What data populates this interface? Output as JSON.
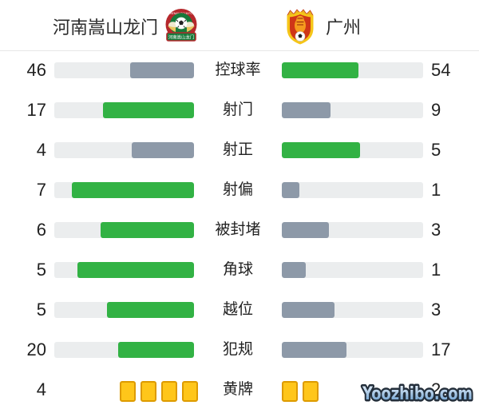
{
  "header": {
    "home_team": "河南嵩山龙门",
    "away_team": "广州",
    "home_logo_banner": "河南嵩山龙门",
    "home_logo_top_text": "HENAN SGLM FC"
  },
  "stats": [
    {
      "label": "控球率",
      "home": "46",
      "away": "54",
      "home_pct": 46,
      "away_pct": 54,
      "home_color": "gray",
      "away_color": "green"
    },
    {
      "label": "射门",
      "home": "17",
      "away": "9",
      "home_pct": 65.4,
      "away_pct": 34.6,
      "home_color": "green",
      "away_color": "gray"
    },
    {
      "label": "射正",
      "home": "4",
      "away": "5",
      "home_pct": 44.4,
      "away_pct": 55.6,
      "home_color": "gray",
      "away_color": "green"
    },
    {
      "label": "射偏",
      "home": "7",
      "away": "1",
      "home_pct": 87.5,
      "away_pct": 12.5,
      "home_color": "green",
      "away_color": "gray"
    },
    {
      "label": "被封堵",
      "home": "6",
      "away": "3",
      "home_pct": 66.7,
      "away_pct": 33.3,
      "home_color": "green",
      "away_color": "gray"
    },
    {
      "label": "角球",
      "home": "5",
      "away": "1",
      "home_pct": 83.3,
      "away_pct": 16.7,
      "home_color": "green",
      "away_color": "gray"
    },
    {
      "label": "越位",
      "home": "5",
      "away": "3",
      "home_pct": 62.5,
      "away_pct": 37.5,
      "home_color": "green",
      "away_color": "gray"
    },
    {
      "label": "犯规",
      "home": "20",
      "away": "17",
      "home_pct": 54.1,
      "away_pct": 45.9,
      "home_color": "green",
      "away_color": "gray"
    }
  ],
  "cards_row": {
    "label": "黄牌",
    "home": "4",
    "away": "2",
    "home_cards": 4,
    "away_cards": 2
  },
  "colors": {
    "green": "#32b244",
    "gray": "#8d99a8",
    "track": "#ebedee",
    "card_fill": "#ffc61a",
    "card_border": "#dd9b00",
    "text": "#212121",
    "divider": "#e7e7e7",
    "watermark_outline": "#232e3a",
    "watermark_fill_top": "#eaf2fb",
    "watermark_fill_bottom": "#5d96cc"
  },
  "watermark": "Yoozhibo.com"
}
